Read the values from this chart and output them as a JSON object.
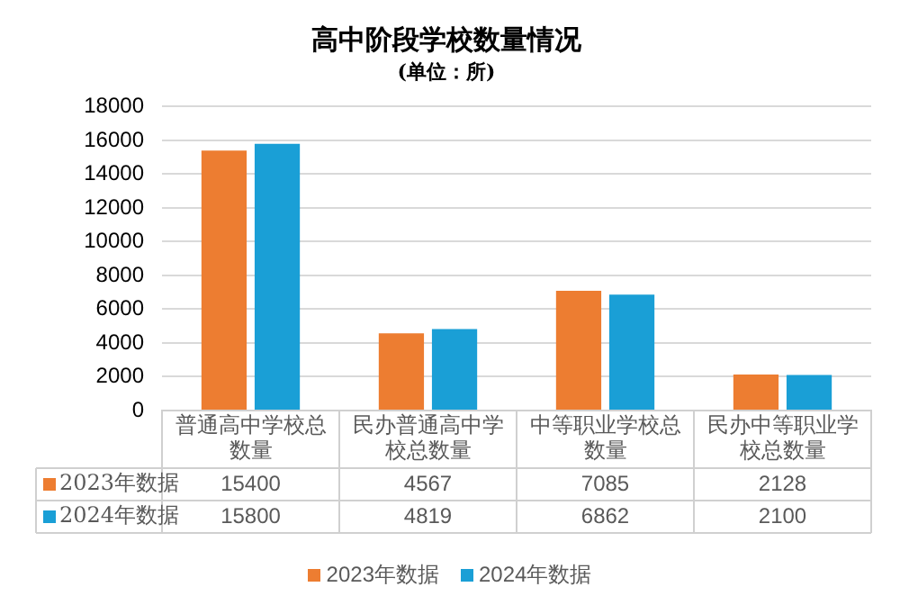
{
  "chart_data": {
    "type": "bar",
    "title": "高中阶段学校数量情况",
    "subtitle": "(单位：所)",
    "categories": [
      "普通高中学校总数量",
      "民办普通高中学校总数量",
      "中等职业学校总数量",
      "民办中等职业学校总数量"
    ],
    "series": [
      {
        "name": "2023年数据",
        "color": "#ed7d31",
        "values": [
          15400,
          4567,
          7085,
          2128
        ]
      },
      {
        "name": "2024年数据",
        "color": "#1a9fd6",
        "values": [
          15800,
          4819,
          6862,
          2100
        ]
      }
    ],
    "ylim": [
      0,
      18000
    ],
    "yticks": [
      0,
      2000,
      4000,
      6000,
      8000,
      10000,
      12000,
      14000,
      16000,
      18000
    ],
    "grid": "y",
    "legend": "bottom",
    "data_labels": true
  }
}
